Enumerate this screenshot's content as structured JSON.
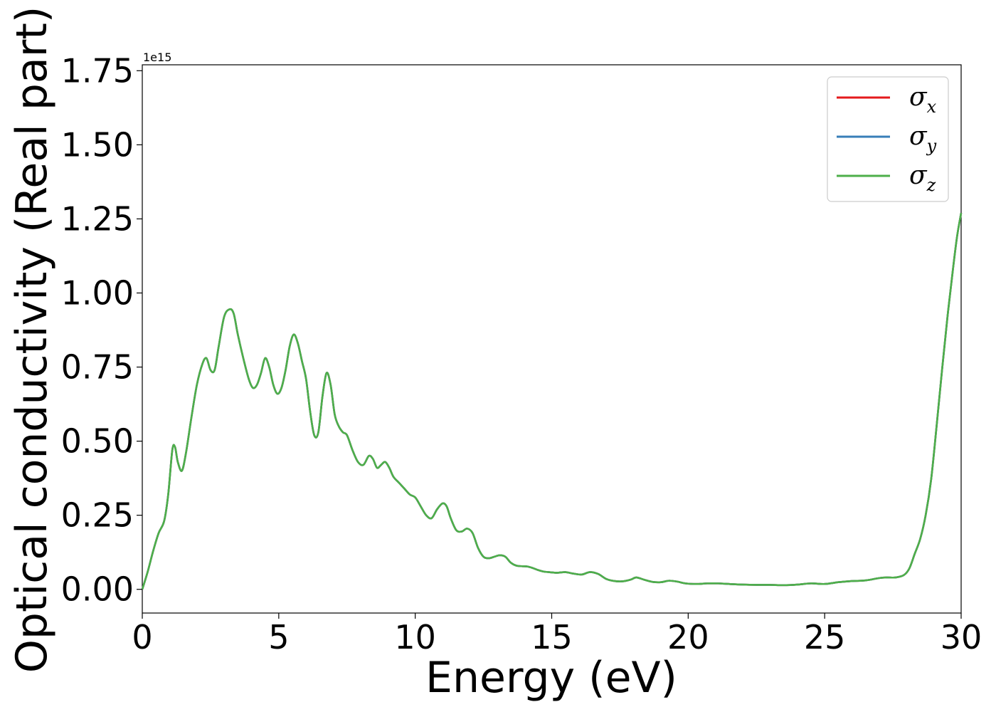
{
  "chart_data": {
    "type": "line",
    "title": "",
    "xlabel": "Energy (eV)",
    "ylabel": "Optical conductivity (Real part)",
    "y_offset_text": "1e15",
    "xlim": [
      0,
      30
    ],
    "ylim": [
      -0.08,
      1.77
    ],
    "xticks": [
      0,
      5,
      10,
      15,
      20,
      25,
      30
    ],
    "xtick_labels": [
      "0",
      "5",
      "10",
      "15",
      "20",
      "25",
      "30"
    ],
    "yticks": [
      0.0,
      0.25,
      0.5,
      0.75,
      1.0,
      1.25,
      1.5,
      1.75
    ],
    "ytick_labels": [
      "0.00",
      "0.25",
      "0.50",
      "0.75",
      "1.00",
      "1.25",
      "1.50",
      "1.75"
    ],
    "grid": false,
    "legend_position": "top-right",
    "x": [
      0,
      0.2,
      0.4,
      0.6,
      0.8,
      0.95,
      1.1,
      1.2,
      1.3,
      1.45,
      1.6,
      1.8,
      2.0,
      2.2,
      2.35,
      2.5,
      2.65,
      2.8,
      3.0,
      3.2,
      3.35,
      3.5,
      3.7,
      3.9,
      4.05,
      4.2,
      4.35,
      4.5,
      4.65,
      4.8,
      4.95,
      5.1,
      5.25,
      5.4,
      5.55,
      5.7,
      5.85,
      6.0,
      6.15,
      6.3,
      6.45,
      6.6,
      6.75,
      6.9,
      7.05,
      7.2,
      7.35,
      7.5,
      7.7,
      7.9,
      8.1,
      8.3,
      8.45,
      8.6,
      8.75,
      8.9,
      9.05,
      9.2,
      9.4,
      9.6,
      9.8,
      10.0,
      10.2,
      10.4,
      10.6,
      10.8,
      11.0,
      11.15,
      11.3,
      11.5,
      11.7,
      11.9,
      12.1,
      12.3,
      12.5,
      12.7,
      12.9,
      13.1,
      13.3,
      13.5,
      13.7,
      13.9,
      14.1,
      14.3,
      14.5,
      14.7,
      14.9,
      15.2,
      15.5,
      15.8,
      16.1,
      16.4,
      16.7,
      17.0,
      17.3,
      17.6,
      17.9,
      18.1,
      18.4,
      18.7,
      19.0,
      19.3,
      19.6,
      19.9,
      20.3,
      20.7,
      21.1,
      21.5,
      22.0,
      22.5,
      23.0,
      23.5,
      24.0,
      24.5,
      25.0,
      25.5,
      26.0,
      26.5,
      27.0,
      27.3,
      27.6,
      27.9,
      28.1,
      28.3,
      28.5,
      28.7,
      28.9,
      29.1,
      29.3,
      29.5,
      29.7,
      29.85,
      30.0
    ],
    "series": [
      {
        "name": "σx",
        "color": "#e41a1c",
        "values": [
          0.0,
          0.06,
          0.13,
          0.19,
          0.23,
          0.32,
          0.47,
          0.48,
          0.43,
          0.4,
          0.46,
          0.58,
          0.69,
          0.76,
          0.78,
          0.74,
          0.74,
          0.82,
          0.92,
          0.945,
          0.93,
          0.86,
          0.78,
          0.71,
          0.68,
          0.69,
          0.73,
          0.78,
          0.75,
          0.69,
          0.66,
          0.68,
          0.74,
          0.82,
          0.86,
          0.83,
          0.77,
          0.71,
          0.6,
          0.52,
          0.53,
          0.65,
          0.73,
          0.69,
          0.59,
          0.55,
          0.53,
          0.52,
          0.47,
          0.43,
          0.42,
          0.45,
          0.44,
          0.41,
          0.42,
          0.43,
          0.41,
          0.38,
          0.36,
          0.34,
          0.32,
          0.31,
          0.28,
          0.25,
          0.24,
          0.27,
          0.29,
          0.28,
          0.24,
          0.2,
          0.195,
          0.205,
          0.19,
          0.14,
          0.11,
          0.105,
          0.11,
          0.115,
          0.11,
          0.09,
          0.08,
          0.078,
          0.077,
          0.072,
          0.065,
          0.06,
          0.058,
          0.056,
          0.058,
          0.053,
          0.05,
          0.058,
          0.052,
          0.035,
          0.028,
          0.027,
          0.033,
          0.04,
          0.032,
          0.025,
          0.024,
          0.029,
          0.026,
          0.02,
          0.018,
          0.02,
          0.02,
          0.018,
          0.016,
          0.015,
          0.015,
          0.014,
          0.016,
          0.02,
          0.018,
          0.024,
          0.028,
          0.03,
          0.038,
          0.04,
          0.04,
          0.048,
          0.07,
          0.12,
          0.17,
          0.25,
          0.37,
          0.55,
          0.74,
          0.92,
          1.08,
          1.19,
          1.27
        ]
      },
      {
        "name": "σy",
        "color": "#377eb8",
        "values": [
          0.0,
          0.06,
          0.13,
          0.19,
          0.23,
          0.32,
          0.47,
          0.48,
          0.43,
          0.4,
          0.46,
          0.58,
          0.69,
          0.76,
          0.78,
          0.74,
          0.74,
          0.82,
          0.92,
          0.945,
          0.93,
          0.86,
          0.78,
          0.71,
          0.68,
          0.69,
          0.73,
          0.78,
          0.75,
          0.69,
          0.66,
          0.68,
          0.74,
          0.82,
          0.86,
          0.83,
          0.77,
          0.71,
          0.6,
          0.52,
          0.53,
          0.65,
          0.73,
          0.69,
          0.59,
          0.55,
          0.53,
          0.52,
          0.47,
          0.43,
          0.42,
          0.45,
          0.44,
          0.41,
          0.42,
          0.43,
          0.41,
          0.38,
          0.36,
          0.34,
          0.32,
          0.31,
          0.28,
          0.25,
          0.24,
          0.27,
          0.29,
          0.28,
          0.24,
          0.2,
          0.195,
          0.205,
          0.19,
          0.14,
          0.11,
          0.105,
          0.11,
          0.115,
          0.11,
          0.09,
          0.08,
          0.078,
          0.077,
          0.072,
          0.065,
          0.06,
          0.058,
          0.056,
          0.058,
          0.053,
          0.05,
          0.058,
          0.052,
          0.035,
          0.028,
          0.027,
          0.033,
          0.04,
          0.032,
          0.025,
          0.024,
          0.029,
          0.026,
          0.02,
          0.018,
          0.02,
          0.02,
          0.018,
          0.016,
          0.015,
          0.015,
          0.014,
          0.016,
          0.02,
          0.018,
          0.024,
          0.028,
          0.03,
          0.038,
          0.04,
          0.04,
          0.048,
          0.07,
          0.12,
          0.17,
          0.25,
          0.37,
          0.55,
          0.74,
          0.92,
          1.08,
          1.19,
          1.27
        ]
      },
      {
        "name": "σz",
        "color": "#4daf4a",
        "values": [
          0.0,
          0.06,
          0.13,
          0.19,
          0.23,
          0.32,
          0.47,
          0.48,
          0.43,
          0.4,
          0.46,
          0.58,
          0.69,
          0.76,
          0.78,
          0.74,
          0.74,
          0.82,
          0.92,
          0.945,
          0.93,
          0.86,
          0.78,
          0.71,
          0.68,
          0.69,
          0.73,
          0.78,
          0.75,
          0.69,
          0.66,
          0.68,
          0.74,
          0.82,
          0.86,
          0.83,
          0.77,
          0.71,
          0.6,
          0.52,
          0.53,
          0.65,
          0.73,
          0.69,
          0.59,
          0.55,
          0.53,
          0.52,
          0.47,
          0.43,
          0.42,
          0.45,
          0.44,
          0.41,
          0.42,
          0.43,
          0.41,
          0.38,
          0.36,
          0.34,
          0.32,
          0.31,
          0.28,
          0.25,
          0.24,
          0.27,
          0.29,
          0.28,
          0.24,
          0.2,
          0.195,
          0.205,
          0.19,
          0.14,
          0.11,
          0.105,
          0.11,
          0.115,
          0.11,
          0.09,
          0.08,
          0.078,
          0.077,
          0.072,
          0.065,
          0.06,
          0.058,
          0.056,
          0.058,
          0.053,
          0.05,
          0.058,
          0.052,
          0.035,
          0.028,
          0.027,
          0.033,
          0.04,
          0.032,
          0.025,
          0.024,
          0.029,
          0.026,
          0.02,
          0.018,
          0.02,
          0.02,
          0.018,
          0.016,
          0.015,
          0.015,
          0.014,
          0.016,
          0.02,
          0.018,
          0.024,
          0.028,
          0.03,
          0.038,
          0.04,
          0.04,
          0.048,
          0.07,
          0.12,
          0.17,
          0.25,
          0.37,
          0.55,
          0.74,
          0.92,
          1.08,
          1.19,
          1.27
        ]
      }
    ],
    "legend": [
      {
        "symbol": "σ",
        "subscript": "x"
      },
      {
        "symbol": "σ",
        "subscript": "y"
      },
      {
        "symbol": "σ",
        "subscript": "z"
      }
    ]
  }
}
